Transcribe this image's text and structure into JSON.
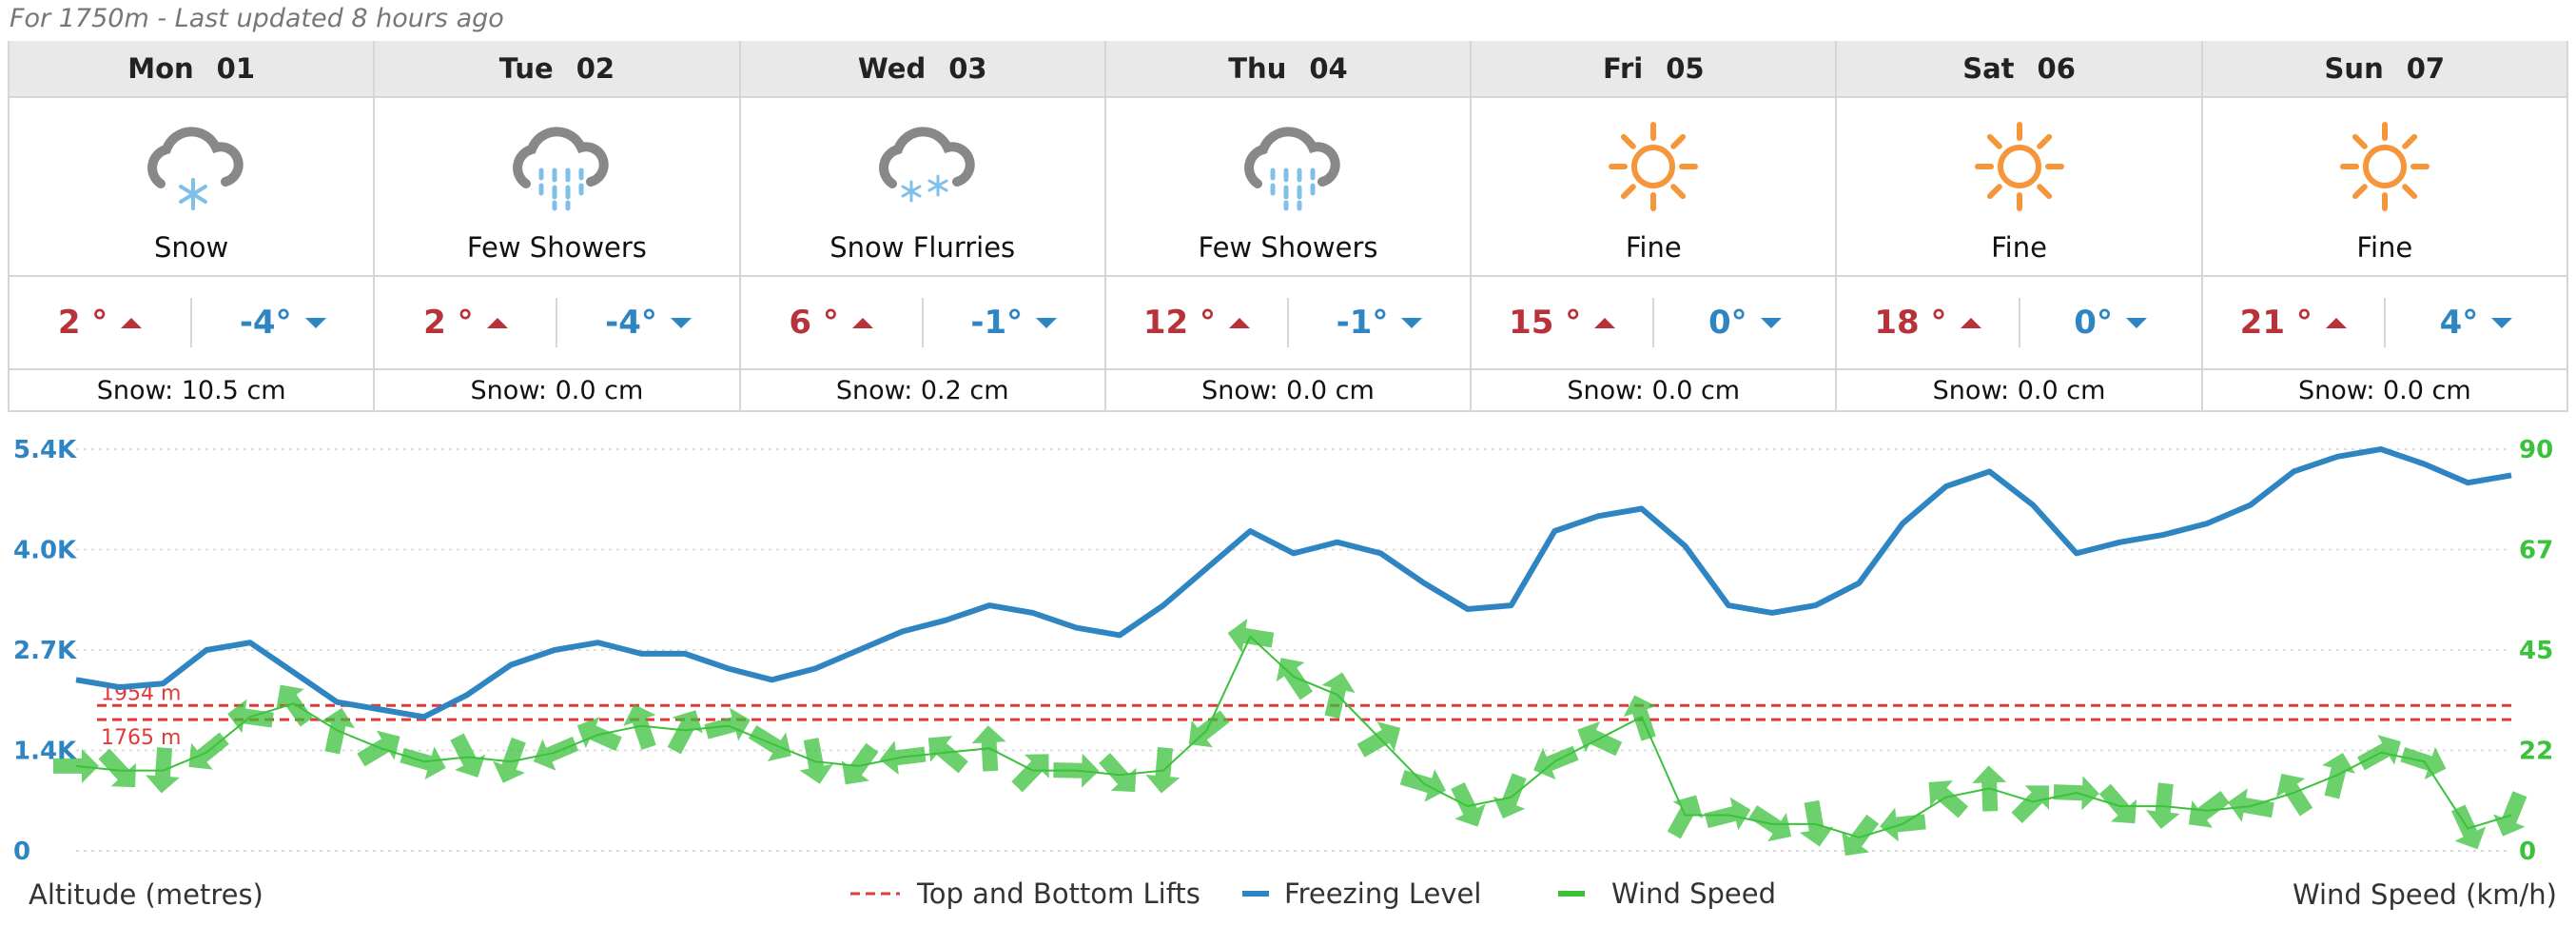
{
  "subtitle": "For 1750m - Last updated 8 hours ago",
  "days": [
    {
      "day": "Mon",
      "date": "01",
      "icon": "snow-icon",
      "summary": "Snow",
      "high": "2 °",
      "low": "-4°",
      "snow": "Snow: 10.5 cm"
    },
    {
      "day": "Tue",
      "date": "02",
      "icon": "showers-icon",
      "summary": "Few Showers",
      "high": "2 °",
      "low": "-4°",
      "snow": "Snow: 0.0 cm"
    },
    {
      "day": "Wed",
      "date": "03",
      "icon": "snow-flurries-icon",
      "summary": "Snow Flurries",
      "high": "6 °",
      "low": "-1°",
      "snow": "Snow: 0.2 cm"
    },
    {
      "day": "Thu",
      "date": "04",
      "icon": "showers-icon",
      "summary": "Few Showers",
      "high": "12 °",
      "low": "-1°",
      "snow": "Snow: 0.0 cm"
    },
    {
      "day": "Fri",
      "date": "05",
      "icon": "sun-icon",
      "summary": "Fine",
      "high": "15 °",
      "low": "0°",
      "snow": "Snow: 0.0 cm"
    },
    {
      "day": "Sat",
      "date": "06",
      "icon": "sun-icon",
      "summary": "Fine",
      "high": "18 °",
      "low": "0°",
      "snow": "Snow: 0.0 cm"
    },
    {
      "day": "Sun",
      "date": "07",
      "icon": "sun-icon",
      "summary": "Fine",
      "high": "21 °",
      "low": "4°",
      "snow": "Snow: 0.0 cm"
    }
  ],
  "colors": {
    "high": "#b8323a",
    "low": "#2e85c2",
    "freezing": "#2e85c2",
    "wind": "#3bc23b",
    "lifts": "#e03a3a",
    "sun": "#f5963a",
    "cloud": "#888888",
    "precip": "#7ec0e8"
  },
  "chart_data": {
    "type": "line",
    "xlabel": "",
    "ylabel_left": "Altitude (metres)",
    "ylabel_right": "Wind Speed (km/h)",
    "left_ticks": [
      "0",
      "1.4K",
      "2.7K",
      "4.0K",
      "5.4K"
    ],
    "left_tick_values": [
      0,
      1350,
      2700,
      4050,
      5400
    ],
    "right_ticks": [
      "0",
      "22",
      "45",
      "67",
      "90"
    ],
    "right_tick_values": [
      0,
      22.5,
      45,
      67.5,
      90
    ],
    "ylim_left": [
      0,
      5400
    ],
    "ylim_right": [
      0,
      90
    ],
    "grid": true,
    "legend": [
      {
        "name": "Top and Bottom Lifts",
        "style": "dashed",
        "color": "#e03a3a"
      },
      {
        "name": "Freezing Level",
        "style": "solid",
        "color": "#2e85c2"
      },
      {
        "name": "Wind Speed",
        "style": "solid",
        "color": "#3bc23b"
      }
    ],
    "lifts": [
      {
        "label": "1954 m",
        "value": 1954
      },
      {
        "label": "1765 m",
        "value": 1765
      }
    ],
    "freezing_level": {
      "name": "Freezing Level",
      "x": [
        0,
        1,
        2,
        3,
        4,
        5,
        6,
        7,
        8,
        9,
        10,
        11,
        12,
        13,
        14,
        15,
        16,
        17,
        18,
        19,
        20,
        21,
        22,
        23,
        24,
        25,
        26,
        27,
        28,
        29,
        30,
        31,
        32,
        33,
        34,
        35,
        36,
        37,
        38,
        39,
        40,
        41,
        42,
        43,
        44,
        45,
        46,
        47,
        48,
        49,
        50,
        51,
        52,
        53,
        54,
        55,
        56
      ],
      "values": [
        2300,
        2200,
        2250,
        2700,
        2800,
        2400,
        2000,
        1900,
        1800,
        2100,
        2500,
        2700,
        2800,
        2650,
        2650,
        2450,
        2300,
        2450,
        2700,
        2950,
        3100,
        3300,
        3200,
        3000,
        2900,
        3300,
        3800,
        4300,
        4000,
        4150,
        4000,
        3600,
        3250,
        3300,
        4300,
        4500,
        4600,
        4100,
        3300,
        3200,
        3300,
        3600,
        4400,
        4900,
        5100,
        4650,
        4000,
        4150,
        4250,
        4400,
        4650,
        5100,
        5300,
        5400,
        5200,
        4950,
        5050
      ]
    },
    "wind_speed": {
      "name": "Wind Speed",
      "x": [
        0,
        1,
        2,
        3,
        4,
        5,
        6,
        7,
        8,
        9,
        10,
        11,
        12,
        13,
        14,
        15,
        16,
        17,
        18,
        19,
        20,
        21,
        22,
        23,
        24,
        25,
        26,
        27,
        28,
        29,
        30,
        31,
        32,
        33,
        34,
        35,
        36,
        37,
        38,
        39,
        40,
        41,
        42,
        43,
        44,
        45,
        46,
        47,
        48,
        49,
        50,
        51,
        52,
        53,
        54,
        55,
        56
      ],
      "values": [
        19,
        18,
        18,
        22,
        30,
        33,
        27,
        23,
        20,
        21,
        20,
        22,
        26,
        28,
        27,
        28,
        24,
        20,
        19,
        21,
        22,
        23,
        18,
        18,
        17,
        18,
        27,
        48,
        39,
        35,
        25,
        15,
        10,
        12,
        20,
        25,
        30,
        8,
        8,
        6,
        6,
        3,
        6,
        12,
        14,
        11,
        13,
        10,
        10,
        9,
        10,
        13,
        17,
        22,
        20,
        5,
        8
      ]
    }
  },
  "legend_labels": {
    "lifts": "Top and Bottom Lifts",
    "freezing": "Freezing Level",
    "wind": "Wind Speed"
  },
  "axis_titles": {
    "left": "Altitude (metres)",
    "right": "Wind Speed (km/h)"
  }
}
